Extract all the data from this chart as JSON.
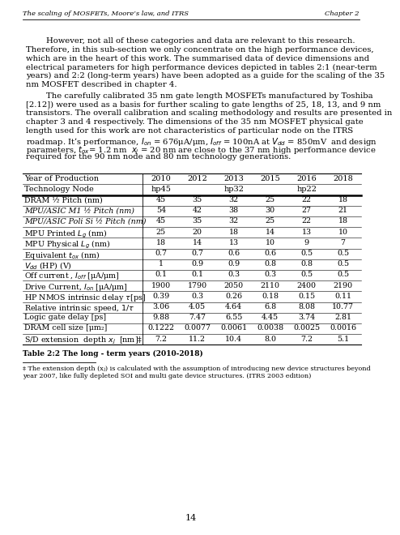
{
  "header_left": "The scaling of MOSFETs, Moore’s law, and ITRS",
  "header_right": "Chapter 2",
  "para1_lines": [
    "        However, not all of these categories and data are relevant to this research.",
    "Therefore, in this sub-section we only concentrate on the high performance devices,",
    "which are in the heart of this work. The summarised data of device dimensions and",
    "electrical parameters for high performance devices depicted in tables 2:1 (near-term",
    "years) and 2:2 (long-term years) have been adopted as a guide for the scaling of the 35",
    "nm MOSFET described in chapter 4."
  ],
  "para2_lines": [
    "        The carefully calibrated 35 nm gate length MOSFETs manufactured by Toshiba",
    "[2.12]) were used as a basis for further scaling to gate lengths of 25, 18, 13, and 9 nm",
    "transistors. The overall calibration and scaling methodology and results are presented in",
    "chapter 3 and 4 respectively. The dimensions of the 35 nm MOSFET physical gate",
    "length used for this work are not characteristics of particular node on the ITRS",
    "roadmap. It’s performance, $I_{on}$ = 676μA/μm, $I_{off}$ = 100nA at $V_{dd}$ = 850mV  and design",
    "parameters, $t_{ox}$= 1.2 nm  $x_j$ = 20 nm are close to the 37 nm high performance device",
    "required for the 90 nm node and 80 nm technology generations."
  ],
  "page_number": "14",
  "col_headers1": [
    "Year of Production",
    "2010",
    "2012",
    "2013",
    "2015",
    "2016",
    "2018"
  ],
  "col_headers2": [
    "Technology Node",
    "hp45",
    "",
    "hp32",
    "",
    "hp22",
    ""
  ],
  "rows": [
    [
      "DRAM ½ Pitch (nm)",
      "45",
      "35",
      "32",
      "25",
      "22",
      "18",
      false
    ],
    [
      "MPU/ASIC M1 ½ Pitch (nm)",
      "54",
      "42",
      "38",
      "30",
      "27",
      "21",
      true
    ],
    [
      "MPU/ASIC Poli Si ½ Pitch (nm)",
      "45",
      "35",
      "32",
      "25",
      "22",
      "18",
      true
    ],
    [
      "MPU Printed $L_g$ (nm)",
      "25",
      "20",
      "18",
      "14",
      "13",
      "10",
      false
    ],
    [
      "MPU Physical $L_g$ (nm)",
      "18",
      "14",
      "13",
      "10",
      "9",
      "7",
      false
    ],
    [
      "Equivalent $t_{ox}$ (nm)",
      "0.7",
      "0.7",
      "0.6",
      "0.6",
      "0.5",
      "0.5",
      false
    ],
    [
      "$V_{dd}$ (HP) (V)",
      "1",
      "0.9",
      "0.9",
      "0.8",
      "0.8",
      "0.5",
      false
    ],
    [
      "Off current , $I_{off}$ [μA/μm]",
      "0.1",
      "0.1",
      "0.3",
      "0.3",
      "0.5",
      "0.5",
      false
    ],
    [
      "Drive Current, $I_{on}$ [μA/μm]",
      "1900",
      "1790",
      "2050",
      "2110",
      "2400",
      "2190",
      false
    ],
    [
      "HP NMOS intrinsic delay $\\tau$[ps]",
      "0.39",
      "0.3",
      "0.26",
      "0.18",
      "0.15",
      "0.11",
      false
    ],
    [
      "Relative intrinsic speed, $1/\\tau$",
      "3.06",
      "4.05",
      "4.64",
      "6.8",
      "8.08",
      "10.77",
      false
    ],
    [
      "Logic gate delay [ps]",
      "9.88",
      "7.47",
      "6.55",
      "4.45",
      "3.74",
      "2.81",
      false
    ],
    [
      "DRAM cell size [μm₂]",
      "0.1222",
      "0.0077",
      "0.0061",
      "0.0038",
      "0.0025",
      "0.0016",
      false
    ],
    [
      "S/D extension  depth $x_j$  [nm]‡",
      "7.2",
      "11.2",
      "10.4",
      "8.0",
      "7.2",
      "5.1",
      false
    ]
  ],
  "table_caption": "Table 2:2 The long - term years (2010-2018)",
  "footnote_lines": [
    "‡ The extension depth (xⱼ) is calculated with the assumption of introducing new device structures beyond",
    "year 2007, like fully depleted SOI and multi gate device structures. (ITRS 2003 edition)"
  ]
}
